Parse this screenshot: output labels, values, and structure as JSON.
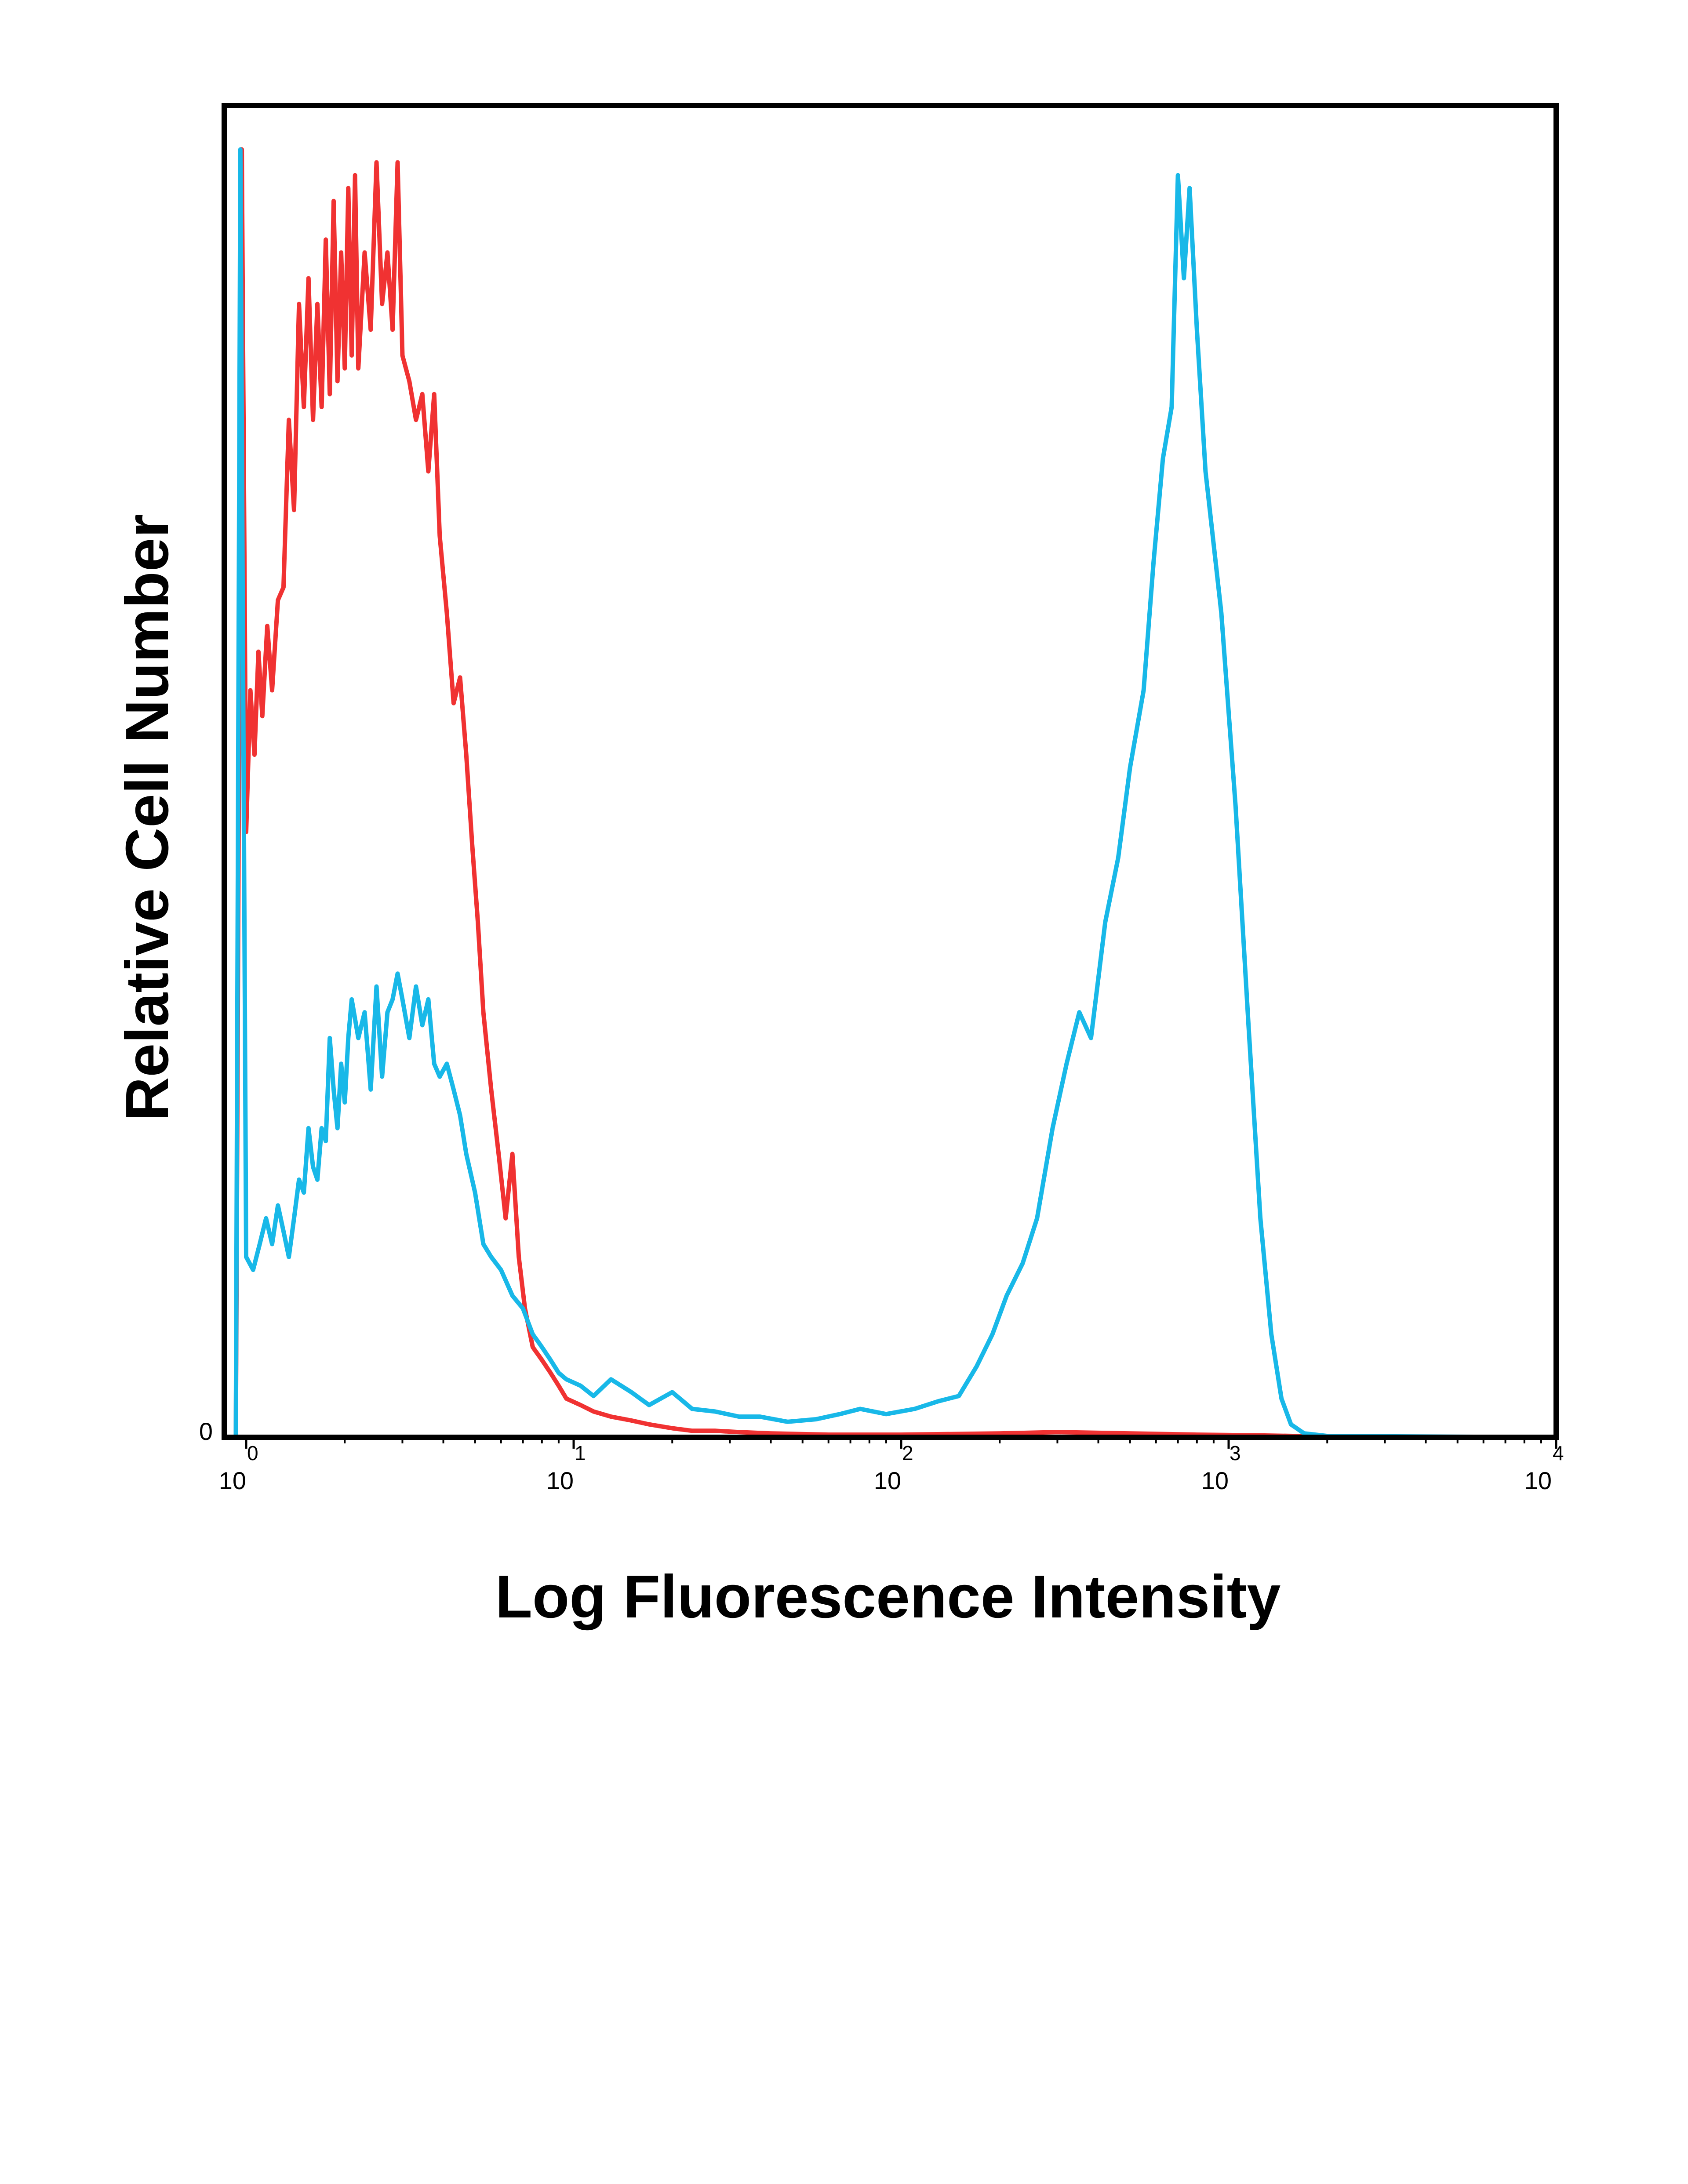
{
  "chart_data": {
    "type": "line",
    "title": "",
    "xlabel": "Log Fluorescence Intensity",
    "ylabel": "Relative Cell Number",
    "x_scale": "log",
    "xlim": [
      1,
      10000
    ],
    "ylim": [
      0,
      100
    ],
    "grid": false,
    "legend": "none",
    "x_ticks": [
      {
        "base": "10",
        "exp": "0",
        "value": 1
      },
      {
        "base": "10",
        "exp": "1",
        "value": 10
      },
      {
        "base": "10",
        "exp": "2",
        "value": 100
      },
      {
        "base": "10",
        "exp": "3",
        "value": 1000
      },
      {
        "base": "10",
        "exp": "4",
        "value": 10000
      }
    ],
    "y_ticks": [
      {
        "label": "0",
        "value": 0
      }
    ],
    "series": [
      {
        "color": "#f03232",
        "points": [
          [
            0.93,
            0
          ],
          [
            0.97,
            100
          ],
          [
            1.0,
            47
          ],
          [
            1.03,
            58
          ],
          [
            1.06,
            53
          ],
          [
            1.09,
            61
          ],
          [
            1.12,
            56
          ],
          [
            1.16,
            63
          ],
          [
            1.2,
            58
          ],
          [
            1.25,
            65
          ],
          [
            1.3,
            66
          ],
          [
            1.35,
            79
          ],
          [
            1.4,
            72
          ],
          [
            1.45,
            88
          ],
          [
            1.5,
            80
          ],
          [
            1.55,
            90
          ],
          [
            1.6,
            79
          ],
          [
            1.65,
            88
          ],
          [
            1.7,
            80
          ],
          [
            1.75,
            93
          ],
          [
            1.8,
            81
          ],
          [
            1.85,
            96
          ],
          [
            1.9,
            82
          ],
          [
            1.95,
            92
          ],
          [
            2.0,
            83
          ],
          [
            2.05,
            97
          ],
          [
            2.1,
            84
          ],
          [
            2.15,
            98
          ],
          [
            2.2,
            83
          ],
          [
            2.3,
            92
          ],
          [
            2.4,
            86
          ],
          [
            2.5,
            99
          ],
          [
            2.6,
            88
          ],
          [
            2.7,
            92
          ],
          [
            2.8,
            86
          ],
          [
            2.9,
            99
          ],
          [
            3.0,
            84
          ],
          [
            3.15,
            82
          ],
          [
            3.3,
            79
          ],
          [
            3.45,
            81
          ],
          [
            3.6,
            75
          ],
          [
            3.75,
            81
          ],
          [
            3.9,
            70
          ],
          [
            4.1,
            64
          ],
          [
            4.3,
            57
          ],
          [
            4.5,
            59
          ],
          [
            4.7,
            53
          ],
          [
            4.9,
            46
          ],
          [
            5.1,
            40
          ],
          [
            5.3,
            33
          ],
          [
            5.6,
            27
          ],
          [
            5.9,
            22
          ],
          [
            6.2,
            17
          ],
          [
            6.5,
            22
          ],
          [
            6.8,
            14
          ],
          [
            7.1,
            10
          ],
          [
            7.5,
            7
          ],
          [
            8.0,
            6
          ],
          [
            8.5,
            5
          ],
          [
            9.0,
            4
          ],
          [
            9.5,
            3
          ],
          [
            10.5,
            2.5
          ],
          [
            11.5,
            2
          ],
          [
            13,
            1.6
          ],
          [
            15,
            1.3
          ],
          [
            17,
            1
          ],
          [
            20,
            0.7
          ],
          [
            23,
            0.5
          ],
          [
            27,
            0.5
          ],
          [
            32,
            0.4
          ],
          [
            40,
            0.3
          ],
          [
            60,
            0.2
          ],
          [
            100,
            0.2
          ],
          [
            200,
            0.3
          ],
          [
            300,
            0.4
          ],
          [
            500,
            0.3
          ],
          [
            800,
            0.2
          ],
          [
            1200,
            0.15
          ],
          [
            1600,
            0.1
          ],
          [
            3000,
            0.05
          ],
          [
            10000,
            0
          ]
        ]
      },
      {
        "color": "#18b8e8",
        "points": [
          [
            0.93,
            0
          ],
          [
            0.96,
            100
          ],
          [
            1.0,
            14
          ],
          [
            1.05,
            13
          ],
          [
            1.1,
            15
          ],
          [
            1.15,
            17
          ],
          [
            1.2,
            15
          ],
          [
            1.25,
            18
          ],
          [
            1.3,
            16
          ],
          [
            1.35,
            14
          ],
          [
            1.4,
            17
          ],
          [
            1.45,
            20
          ],
          [
            1.5,
            19
          ],
          [
            1.55,
            24
          ],
          [
            1.6,
            21
          ],
          [
            1.65,
            20
          ],
          [
            1.7,
            24
          ],
          [
            1.75,
            23
          ],
          [
            1.8,
            31
          ],
          [
            1.85,
            27
          ],
          [
            1.9,
            24
          ],
          [
            1.95,
            29
          ],
          [
            2.0,
            26
          ],
          [
            2.05,
            31
          ],
          [
            2.1,
            34
          ],
          [
            2.2,
            31
          ],
          [
            2.3,
            33
          ],
          [
            2.4,
            27
          ],
          [
            2.5,
            35
          ],
          [
            2.6,
            28
          ],
          [
            2.7,
            33
          ],
          [
            2.8,
            34
          ],
          [
            2.9,
            36
          ],
          [
            3.0,
            34
          ],
          [
            3.15,
            31
          ],
          [
            3.3,
            35
          ],
          [
            3.45,
            32
          ],
          [
            3.6,
            34
          ],
          [
            3.75,
            29
          ],
          [
            3.9,
            28
          ],
          [
            4.1,
            29
          ],
          [
            4.3,
            27
          ],
          [
            4.5,
            25
          ],
          [
            4.7,
            22
          ],
          [
            5.0,
            19
          ],
          [
            5.3,
            15
          ],
          [
            5.6,
            14
          ],
          [
            6.0,
            13
          ],
          [
            6.5,
            11
          ],
          [
            7.0,
            10
          ],
          [
            7.5,
            8
          ],
          [
            8.0,
            7
          ],
          [
            8.5,
            6
          ],
          [
            9.0,
            5
          ],
          [
            9.5,
            4.5
          ],
          [
            10.5,
            4
          ],
          [
            11.5,
            3.2
          ],
          [
            13,
            4.5
          ],
          [
            15,
            3.5
          ],
          [
            17,
            2.5
          ],
          [
            20,
            3.5
          ],
          [
            23,
            2.2
          ],
          [
            27,
            2
          ],
          [
            32,
            1.6
          ],
          [
            37,
            1.6
          ],
          [
            45,
            1.2
          ],
          [
            55,
            1.4
          ],
          [
            65,
            1.8
          ],
          [
            75,
            2.2
          ],
          [
            90,
            1.8
          ],
          [
            110,
            2.2
          ],
          [
            130,
            2.8
          ],
          [
            150,
            3.2
          ],
          [
            170,
            5.5
          ],
          [
            190,
            8
          ],
          [
            210,
            11
          ],
          [
            235,
            13.5
          ],
          [
            260,
            17
          ],
          [
            290,
            24
          ],
          [
            320,
            29
          ],
          [
            350,
            33
          ],
          [
            380,
            31
          ],
          [
            420,
            40
          ],
          [
            460,
            45
          ],
          [
            500,
            52
          ],
          [
            550,
            58
          ],
          [
            590,
            68
          ],
          [
            630,
            76
          ],
          [
            670,
            80
          ],
          [
            700,
            98
          ],
          [
            730,
            90
          ],
          [
            760,
            97
          ],
          [
            800,
            86
          ],
          [
            850,
            75
          ],
          [
            950,
            64
          ],
          [
            1050,
            49
          ],
          [
            1150,
            32
          ],
          [
            1250,
            17
          ],
          [
            1350,
            8
          ],
          [
            1450,
            3
          ],
          [
            1550,
            1
          ],
          [
            1700,
            0.3
          ],
          [
            2000,
            0.1
          ],
          [
            10000,
            0
          ]
        ]
      }
    ]
  }
}
